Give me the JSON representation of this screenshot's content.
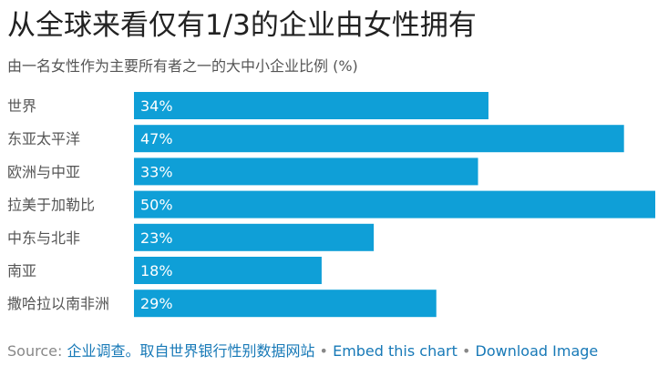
{
  "chart_data": {
    "type": "bar",
    "orientation": "horizontal",
    "title": "从全球来看仅有1/3的企业由女性拥有",
    "subtitle": "由一名女性作为主要所有者之一的大中小企业比例 (%)",
    "categories": [
      "世界",
      "东亚太平洋",
      "欧洲与中亚",
      "拉美于加勒比",
      "中东与北非",
      "南亚",
      "撒哈拉以南非洲"
    ],
    "values": [
      34,
      47,
      33,
      50,
      23,
      18,
      29
    ],
    "value_labels": [
      "34%",
      "47%",
      "33%",
      "50%",
      "23%",
      "18%",
      "29%"
    ],
    "xlim": [
      0,
      50
    ],
    "grid": false,
    "legend": "none",
    "bar_color": "#0f9fd7"
  },
  "footer": {
    "source_prefix": "Source: ",
    "source_link": "企业调查。取自世界银行性别数据网站",
    "separator": "•",
    "embed_link": "Embed this chart",
    "download_link": "Download Image"
  }
}
